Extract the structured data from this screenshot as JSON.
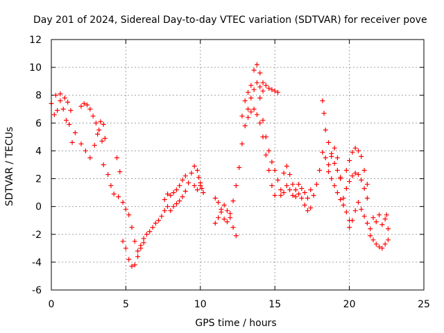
{
  "chart_data": {
    "type": "scatter",
    "title": "Day 201 of 2024, Sidereal Day-to-day VTEC variation (SDTVAR) for receiver pove",
    "xlabel": "GPS time / hours",
    "ylabel": "SDTVAR / TECUs",
    "xlim": [
      0,
      25
    ],
    "ylim": [
      -6,
      12
    ],
    "xticks": [
      0,
      5,
      10,
      15,
      20,
      25
    ],
    "yticks": [
      -6,
      -4,
      -2,
      0,
      2,
      4,
      6,
      8,
      10,
      12
    ],
    "grid": true,
    "marker": "+",
    "color": "#ff0000",
    "series": [
      {
        "name": "SDTVAR",
        "points": [
          [
            0.0,
            7.4
          ],
          [
            0.2,
            6.6
          ],
          [
            0.4,
            6.9
          ],
          [
            0.6,
            7.6
          ],
          [
            0.8,
            7.0
          ],
          [
            1.0,
            6.2
          ],
          [
            1.2,
            5.9
          ],
          [
            1.4,
            4.6
          ],
          [
            1.6,
            5.3
          ],
          [
            0.3,
            8.0
          ],
          [
            0.6,
            8.1
          ],
          [
            0.9,
            7.8
          ],
          [
            1.1,
            7.5
          ],
          [
            1.3,
            6.9
          ],
          [
            2.0,
            7.2
          ],
          [
            2.2,
            7.4
          ],
          [
            2.4,
            7.3
          ],
          [
            2.6,
            7.0
          ],
          [
            2.8,
            6.5
          ],
          [
            3.0,
            6.0
          ],
          [
            3.2,
            5.5
          ],
          [
            3.4,
            4.7
          ],
          [
            2.0,
            4.5
          ],
          [
            2.3,
            4.0
          ],
          [
            2.6,
            3.5
          ],
          [
            2.9,
            4.4
          ],
          [
            3.1,
            5.2
          ],
          [
            3.3,
            6.1
          ],
          [
            3.5,
            5.9
          ],
          [
            3.6,
            4.9
          ],
          [
            3.5,
            3.0
          ],
          [
            3.8,
            2.3
          ],
          [
            4.0,
            1.5
          ],
          [
            4.2,
            0.9
          ],
          [
            4.5,
            0.7
          ],
          [
            4.8,
            0.3
          ],
          [
            5.0,
            -0.2
          ],
          [
            5.2,
            -0.6
          ],
          [
            4.4,
            3.5
          ],
          [
            4.6,
            2.5
          ],
          [
            5.4,
            -1.5
          ],
          [
            5.6,
            -2.5
          ],
          [
            5.8,
            -3.2
          ],
          [
            6.0,
            -2.8
          ],
          [
            6.2,
            -2.3
          ],
          [
            6.4,
            -2.0
          ],
          [
            4.8,
            -2.5
          ],
          [
            5.0,
            -3.0
          ],
          [
            5.2,
            -3.8
          ],
          [
            5.4,
            -4.3
          ],
          [
            5.6,
            -4.2
          ],
          [
            5.8,
            -3.6
          ],
          [
            6.0,
            -3.0
          ],
          [
            6.2,
            -2.6
          ],
          [
            6.6,
            -1.8
          ],
          [
            6.8,
            -1.5
          ],
          [
            7.0,
            -1.2
          ],
          [
            7.2,
            -1.0
          ],
          [
            7.4,
            -0.7
          ],
          [
            7.6,
            -0.3
          ],
          [
            7.8,
            0.0
          ],
          [
            8.0,
            -0.3
          ],
          [
            7.6,
            0.5
          ],
          [
            7.8,
            0.9
          ],
          [
            8.0,
            0.8
          ],
          [
            8.2,
            1.0
          ],
          [
            8.4,
            1.2
          ],
          [
            8.6,
            1.5
          ],
          [
            8.8,
            1.9
          ],
          [
            9.0,
            2.2
          ],
          [
            8.2,
            0.0
          ],
          [
            8.4,
            0.2
          ],
          [
            8.6,
            0.4
          ],
          [
            8.8,
            0.7
          ],
          [
            9.0,
            1.1
          ],
          [
            9.2,
            1.7
          ],
          [
            9.4,
            2.4
          ],
          [
            9.6,
            2.9
          ],
          [
            9.8,
            2.6
          ],
          [
            9.9,
            2.1
          ],
          [
            10.0,
            1.7
          ],
          [
            10.1,
            1.3
          ],
          [
            10.2,
            1.0
          ],
          [
            9.6,
            1.5
          ],
          [
            9.8,
            1.2
          ],
          [
            10.0,
            1.5
          ],
          [
            11.0,
            0.6
          ],
          [
            11.2,
            0.3
          ],
          [
            11.4,
            -0.2
          ],
          [
            11.6,
            0.1
          ],
          [
            11.8,
            -0.3
          ],
          [
            12.0,
            -0.8
          ],
          [
            12.2,
            -1.5
          ],
          [
            12.4,
            -2.1
          ],
          [
            11.0,
            -1.2
          ],
          [
            11.2,
            -0.8
          ],
          [
            11.4,
            -0.4
          ],
          [
            11.6,
            -0.9
          ],
          [
            11.8,
            -1.1
          ],
          [
            12.0,
            -0.5
          ],
          [
            12.2,
            0.4
          ],
          [
            12.4,
            1.5
          ],
          [
            12.6,
            2.8
          ],
          [
            12.8,
            4.5
          ],
          [
            13.0,
            5.8
          ],
          [
            13.2,
            6.4
          ],
          [
            13.4,
            6.8
          ],
          [
            13.6,
            7.0
          ],
          [
            13.8,
            6.6
          ],
          [
            14.0,
            6.0
          ],
          [
            12.8,
            6.5
          ],
          [
            13.0,
            7.6
          ],
          [
            13.2,
            8.2
          ],
          [
            13.4,
            8.7
          ],
          [
            13.6,
            9.8
          ],
          [
            13.8,
            10.2
          ],
          [
            14.0,
            9.6
          ],
          [
            14.2,
            8.9
          ],
          [
            13.2,
            7.0
          ],
          [
            13.4,
            7.8
          ],
          [
            13.6,
            8.4
          ],
          [
            13.8,
            8.9
          ],
          [
            14.0,
            8.6
          ],
          [
            14.2,
            8.3
          ],
          [
            14.4,
            8.7
          ],
          [
            14.6,
            8.5
          ],
          [
            14.8,
            8.4
          ],
          [
            15.0,
            8.3
          ],
          [
            15.2,
            8.2
          ],
          [
            14.2,
            5.0
          ],
          [
            14.4,
            3.7
          ],
          [
            14.6,
            2.6
          ],
          [
            14.8,
            1.5
          ],
          [
            15.0,
            0.8
          ],
          [
            14.0,
            7.8
          ],
          [
            14.2,
            6.2
          ],
          [
            14.4,
            5.0
          ],
          [
            14.6,
            4.0
          ],
          [
            14.8,
            3.2
          ],
          [
            15.0,
            2.6
          ],
          [
            15.2,
            1.9
          ],
          [
            15.4,
            1.2
          ],
          [
            15.6,
            2.4
          ],
          [
            15.8,
            2.9
          ],
          [
            16.0,
            2.3
          ],
          [
            16.2,
            1.6
          ],
          [
            16.4,
            1.2
          ],
          [
            16.6,
            1.6
          ],
          [
            16.8,
            1.3
          ],
          [
            17.0,
            1.0
          ],
          [
            15.4,
            0.8
          ],
          [
            15.6,
            1.0
          ],
          [
            15.8,
            1.5
          ],
          [
            16.0,
            1.2
          ],
          [
            16.2,
            0.8
          ],
          [
            16.4,
            0.7
          ],
          [
            16.6,
            0.9
          ],
          [
            16.8,
            0.6
          ],
          [
            17.0,
            0.1
          ],
          [
            17.2,
            -0.3
          ],
          [
            17.4,
            -0.1
          ],
          [
            17.6,
            0.8
          ],
          [
            17.8,
            1.6
          ],
          [
            18.0,
            2.6
          ],
          [
            17.2,
            0.6
          ],
          [
            17.4,
            1.2
          ],
          [
            18.2,
            7.6
          ],
          [
            18.3,
            6.7
          ],
          [
            18.4,
            5.5
          ],
          [
            18.6,
            4.6
          ],
          [
            18.8,
            3.8
          ],
          [
            19.0,
            3.1
          ],
          [
            19.2,
            2.6
          ],
          [
            19.4,
            2.1
          ],
          [
            18.2,
            3.9
          ],
          [
            18.4,
            3.5
          ],
          [
            18.6,
            2.5
          ],
          [
            18.8,
            2.0
          ],
          [
            19.0,
            1.5
          ],
          [
            19.2,
            1.0
          ],
          [
            19.4,
            0.5
          ],
          [
            19.6,
            0.1
          ],
          [
            18.6,
            3.0
          ],
          [
            18.8,
            3.6
          ],
          [
            19.0,
            4.2
          ],
          [
            19.2,
            3.5
          ],
          [
            19.4,
            2.0
          ],
          [
            19.6,
            0.6
          ],
          [
            19.8,
            -0.4
          ],
          [
            20.0,
            -1.0
          ],
          [
            19.8,
            2.6
          ],
          [
            20.0,
            3.3
          ],
          [
            20.2,
            3.9
          ],
          [
            20.4,
            4.2
          ],
          [
            20.6,
            4.0
          ],
          [
            20.8,
            3.6
          ],
          [
            21.0,
            2.6
          ],
          [
            21.2,
            1.6
          ],
          [
            19.8,
            1.3
          ],
          [
            20.0,
            1.8
          ],
          [
            20.2,
            2.2
          ],
          [
            20.4,
            2.4
          ],
          [
            20.6,
            2.3
          ],
          [
            20.8,
            1.9
          ],
          [
            21.0,
            1.3
          ],
          [
            21.2,
            0.6
          ],
          [
            20.0,
            -1.5
          ],
          [
            20.2,
            -1.0
          ],
          [
            20.4,
            -0.3
          ],
          [
            20.6,
            0.3
          ],
          [
            20.8,
            -0.2
          ],
          [
            21.0,
            -0.7
          ],
          [
            21.2,
            -1.2
          ],
          [
            21.4,
            -1.6
          ],
          [
            21.4,
            -2.1
          ],
          [
            21.6,
            -2.4
          ],
          [
            21.8,
            -2.7
          ],
          [
            22.0,
            -2.9
          ],
          [
            22.2,
            -3.0
          ],
          [
            22.4,
            -2.7
          ],
          [
            22.6,
            -2.4
          ],
          [
            21.6,
            -0.8
          ],
          [
            21.8,
            -1.1
          ],
          [
            22.0,
            -0.6
          ],
          [
            22.2,
            -1.3
          ],
          [
            22.4,
            -0.9
          ],
          [
            22.6,
            -1.6
          ],
          [
            22.5,
            -0.6
          ]
        ]
      }
    ]
  }
}
